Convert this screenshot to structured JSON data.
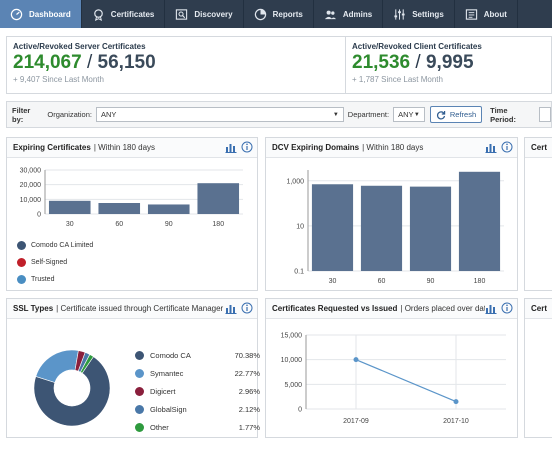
{
  "nav": {
    "items": [
      {
        "label": "Dashboard",
        "icon": "gauge-icon",
        "active": true
      },
      {
        "label": "Certificates",
        "icon": "certificate-icon",
        "active": false
      },
      {
        "label": "Discovery",
        "icon": "discovery-icon",
        "active": false
      },
      {
        "label": "Reports",
        "icon": "reports-icon",
        "active": false
      },
      {
        "label": "Admins",
        "icon": "admins-icon",
        "active": false
      },
      {
        "label": "Settings",
        "icon": "settings-icon",
        "active": false
      },
      {
        "label": "About",
        "icon": "about-icon",
        "active": false
      }
    ]
  },
  "stats": {
    "server": {
      "title": "Active/Revoked Server Certificates",
      "active": "214,067",
      "sep": " / ",
      "revoked": "56,150",
      "sub": "+ 9,407 Since Last Month"
    },
    "client": {
      "title": "Active/Revoked Client Certificates",
      "active": "21,536",
      "sep": " / ",
      "revoked": "9,995",
      "sub": "+ 1,787 Since Last Month"
    }
  },
  "filter": {
    "filter_by": "Filter by:",
    "org_label": "Organization:",
    "org_value": "ANY",
    "dept_label": "Department:",
    "dept_value": "ANY",
    "refresh": "Refresh",
    "time_period": "Time Period:"
  },
  "panels": {
    "expiring": {
      "title": "Expiring Certificates",
      "subtitle": "| Within 180 days"
    },
    "dcv": {
      "title": "DCV Expiring Domains",
      "subtitle": "| Within 180 days"
    },
    "third": {
      "title": "Cert"
    },
    "ssl": {
      "title": "SSL Types",
      "subtitle": "| Certificate issued through Certificate Manager"
    },
    "requested": {
      "title": "Certificates Requested vs Issued",
      "subtitle": "| Orders placed over date..."
    },
    "sixth": {
      "title": "Cert"
    }
  },
  "colors": {
    "nav_bg": "#2f3d4e",
    "nav_active": "#5b84b4",
    "bar": "#5a7190",
    "green": "#2e8b2e"
  },
  "chart_data": [
    {
      "type": "bar",
      "categories": [
        "30",
        "60",
        "90",
        "180"
      ],
      "series": [
        {
          "name": "Comodo CA Limited",
          "values": [
            9000,
            7500,
            6500,
            21000
          ]
        }
      ],
      "ylim": [
        0,
        30000
      ],
      "yticks": [
        "0",
        "10,000",
        "20,000",
        "30,000"
      ],
      "legend": [
        "Comodo CA Limited",
        "Self-Signed",
        "Trusted"
      ],
      "legend_colors": [
        "#3d5574",
        "#c0202a",
        "#4a8ec2"
      ]
    },
    {
      "type": "bar",
      "categories": [
        "30",
        "60",
        "90",
        "180"
      ],
      "values": [
        700,
        600,
        550,
        2500
      ],
      "ylim": [
        0.1,
        3000
      ],
      "yscale": "log",
      "yticks": [
        "0.1",
        "10",
        "1,000"
      ]
    },
    {
      "type": "pie",
      "labels": [
        "Comodo CA",
        "Symantec",
        "Digicert",
        "GlobalSign",
        "Other"
      ],
      "values": [
        70.38,
        22.77,
        2.96,
        2.12,
        1.77
      ],
      "pct_labels": [
        "70.38%",
        "22.77%",
        "2.96%",
        "2.12%",
        "1.77%"
      ],
      "colors": [
        "#3d5574",
        "#5b95c9",
        "#8a1f3c",
        "#4a78a8",
        "#2e9a3e"
      ]
    },
    {
      "type": "line",
      "x": [
        "2017-09",
        "2017-10"
      ],
      "values": [
        10000,
        1500
      ],
      "ylim": [
        0,
        15000
      ],
      "yticks": [
        "0",
        "5,000",
        "10,000",
        "15,000"
      ]
    }
  ]
}
